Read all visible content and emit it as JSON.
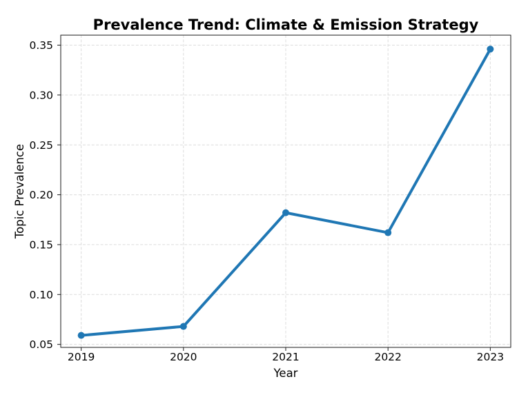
{
  "chart_data": {
    "type": "line",
    "title": "Prevalence Trend: Climate & Emission Strategy",
    "xlabel": "Year",
    "ylabel": "Topic Prevalence",
    "x": [
      2019,
      2020,
      2021,
      2022,
      2023
    ],
    "series": [
      {
        "name": "Climate & Emission Strategy",
        "values": [
          0.059,
          0.068,
          0.182,
          0.162,
          0.346
        ]
      }
    ],
    "xtick_labels": [
      "2019",
      "2020",
      "2021",
      "2022",
      "2023"
    ],
    "yticks": [
      0.05,
      0.1,
      0.15,
      0.2,
      0.25,
      0.3,
      0.35
    ],
    "ytick_labels": [
      "0.05",
      "0.10",
      "0.15",
      "0.20",
      "0.25",
      "0.30",
      "0.35"
    ],
    "xlim": [
      2018.8,
      2023.2
    ],
    "ylim": [
      0.047,
      0.36
    ],
    "grid": true,
    "grid_style": "dashed",
    "legend_position": "none",
    "marker": "circle",
    "line_width": 4,
    "marker_radius": 5,
    "colors": {
      "line": "#1f77b4",
      "marker": "#1f77b4",
      "grid": "#dcdcdc",
      "spine": "#1a1a1a",
      "text": "#000000",
      "background": "#ffffff"
    }
  }
}
